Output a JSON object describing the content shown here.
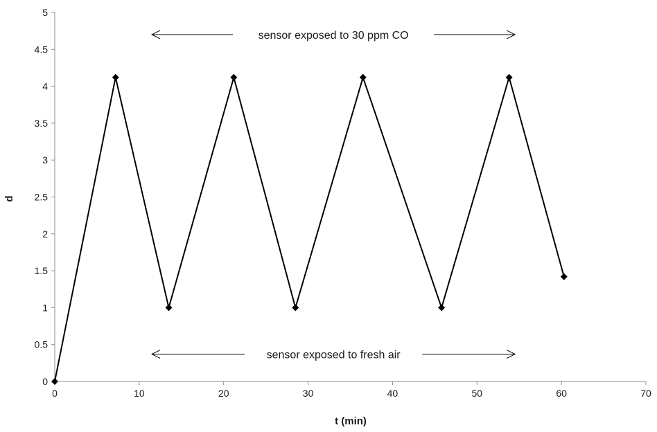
{
  "chart_data": {
    "type": "line",
    "title": "",
    "xlabel": "t (min)",
    "ylabel": "d",
    "xlim": [
      0,
      70
    ],
    "ylim": [
      0,
      5
    ],
    "x_ticks": [
      0,
      10,
      20,
      30,
      40,
      50,
      60,
      70
    ],
    "y_ticks": [
      "0",
      "0.5",
      "1",
      "1.5",
      "2",
      "2.5",
      "3",
      "3.5",
      "4",
      "4.5",
      "5"
    ],
    "grid": false,
    "legend": "none",
    "marker": "diamond",
    "line_color": "#000000",
    "series": [
      {
        "x": [
          0,
          7.2,
          13.5,
          21.2,
          28.5,
          36.5,
          45.8,
          53.8,
          60.3
        ],
        "y": [
          0,
          4.12,
          1.0,
          4.12,
          1.0,
          4.12,
          1.0,
          4.12,
          1.42
        ]
      }
    ],
    "annotations": [
      {
        "text": "sensor  exposed to 30 ppm CO",
        "x_from": 11.5,
        "x_to": 54.5,
        "y": 4.7
      },
      {
        "text": "sensor  exposed to fresh air",
        "x_from": 11.5,
        "x_to": 54.5,
        "y": 0.37
      }
    ]
  }
}
